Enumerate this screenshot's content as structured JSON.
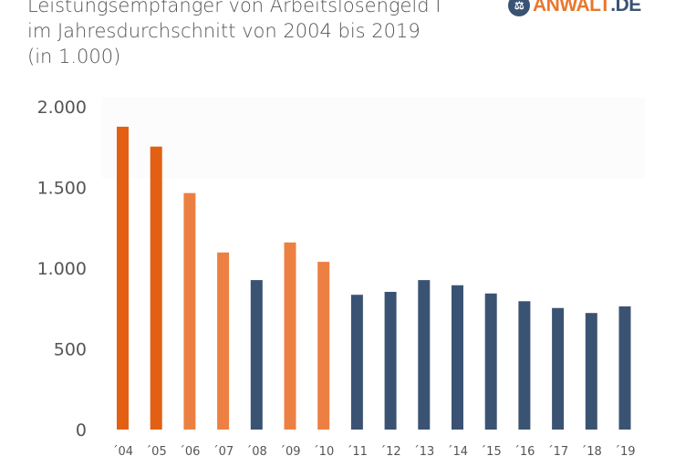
{
  "brand": {
    "logo_main": "ANWALT",
    "logo_suffix": ".DE",
    "icon": "scales-icon"
  },
  "chart_data": {
    "type": "bar",
    "title_lines": [
      "Leistungsempfänger von Arbeitslosengeld I",
      "im Jahresdurchschnitt von 2004 bis 2019",
      "(in 1.000)"
    ],
    "categories": [
      "´04",
      "´05",
      "´06",
      "´07",
      "´08",
      "´09",
      "´10",
      "´11",
      "´12",
      "´13",
      "´14",
      "´15",
      "´16",
      "´17",
      "´18",
      "´19"
    ],
    "values": [
      1876,
      1753,
      1465,
      1097,
      926,
      1159,
      1039,
      835,
      853,
      926,
      894,
      843,
      795,
      753,
      722,
      763
    ],
    "bar_groups": [
      "dark-orange",
      "dark-orange",
      "light-orange",
      "light-orange",
      "navy",
      "light-orange",
      "light-orange",
      "navy",
      "navy",
      "navy",
      "navy",
      "navy",
      "navy",
      "navy",
      "navy",
      "navy"
    ],
    "colors": {
      "dark-orange": "#e35f14",
      "light-orange": "#ec8042",
      "navy": "#3b5373"
    },
    "yticks": [
      {
        "value": 0,
        "label": "0"
      },
      {
        "value": 500,
        "label": "500"
      },
      {
        "value": 1000,
        "label": "1.000"
      },
      {
        "value": 1500,
        "label": "1.500"
      },
      {
        "value": 2000,
        "label": "2.000"
      }
    ],
    "ylim": [
      0,
      2000
    ],
    "xlabel": "",
    "ylabel": "",
    "grid": false,
    "legend": "none"
  }
}
